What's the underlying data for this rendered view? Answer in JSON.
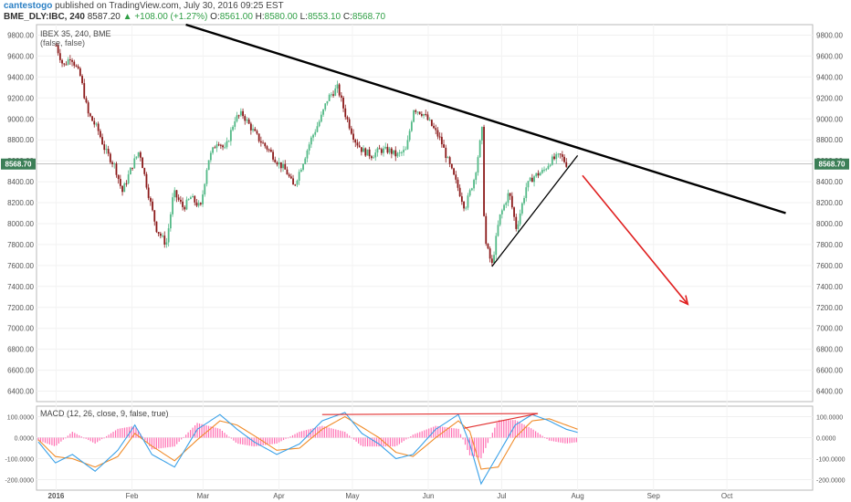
{
  "header": {
    "author": "cantestogo",
    "published_text": "published on TradingView.com, July 30, 2016 09:25 EST",
    "symbol": "BME_DLY:IBC, 240",
    "last": "8587.20",
    "change_arrow": "▲",
    "change": "+108.00 (+1.27%)",
    "o_label": "O:",
    "o_value": "8561.00",
    "h_label": "H:",
    "h_value": "8580.00",
    "l_label": "L:",
    "l_value": "8553.10",
    "c_label": "C:",
    "c_value": "8568.70"
  },
  "chart_data": [
    {
      "type": "candlestick",
      "legend": "IBEX 35, 240, BME",
      "legend_sub": "(false, false)",
      "ylim": [
        6300,
        9900
      ],
      "y_ticks": [
        "9800.00",
        "9600.00",
        "9400.00",
        "9200.00",
        "9000.00",
        "8800.00",
        "8600.00",
        "8400.00",
        "8200.00",
        "8000.00",
        "7800.00",
        "7600.00",
        "7400.00",
        "7200.00",
        "7000.00",
        "6800.00",
        "6600.00",
        "6400.00"
      ],
      "x_ticks": [
        "2016",
        "Feb",
        "Mar",
        "Apr",
        "May",
        "Jun",
        "Jul",
        "Aug",
        "Sep",
        "Oct"
      ],
      "last_price_label": "8568.70",
      "last_price": 8568.7,
      "close_path": [
        [
          "2016-01-01",
          9700
        ],
        [
          "2016-01-04",
          9500
        ],
        [
          "2016-01-07",
          9600
        ],
        [
          "2016-01-11",
          9400
        ],
        [
          "2016-01-14",
          9050
        ],
        [
          "2016-01-18",
          8900
        ],
        [
          "2016-01-21",
          8700
        ],
        [
          "2016-01-25",
          8550
        ],
        [
          "2016-01-28",
          8300
        ],
        [
          "2016-02-01",
          8550
        ],
        [
          "2016-02-04",
          8700
        ],
        [
          "2016-02-08",
          8250
        ],
        [
          "2016-02-11",
          7950
        ],
        [
          "2016-02-15",
          7800
        ],
        [
          "2016-02-18",
          8300
        ],
        [
          "2016-02-22",
          8150
        ],
        [
          "2016-02-25",
          8250
        ],
        [
          "2016-02-29",
          8150
        ],
        [
          "2016-03-03",
          8600
        ],
        [
          "2016-03-07",
          8800
        ],
        [
          "2016-03-10",
          8700
        ],
        [
          "2016-03-14",
          9000
        ],
        [
          "2016-03-17",
          9050
        ],
        [
          "2016-03-21",
          8900
        ],
        [
          "2016-03-24",
          8800
        ],
        [
          "2016-03-28",
          8700
        ],
        [
          "2016-03-31",
          8600
        ],
        [
          "2016-04-04",
          8500
        ],
        [
          "2016-04-07",
          8350
        ],
        [
          "2016-04-11",
          8600
        ],
        [
          "2016-04-14",
          8800
        ],
        [
          "2016-04-18",
          9000
        ],
        [
          "2016-04-21",
          9200
        ],
        [
          "2016-04-25",
          9300
        ],
        [
          "2016-04-28",
          9050
        ],
        [
          "2016-05-02",
          8800
        ],
        [
          "2016-05-05",
          8700
        ],
        [
          "2016-05-09",
          8650
        ],
        [
          "2016-05-12",
          8700
        ],
        [
          "2016-05-16",
          8700
        ],
        [
          "2016-05-19",
          8650
        ],
        [
          "2016-05-23",
          8700
        ],
        [
          "2016-05-26",
          9100
        ],
        [
          "2016-05-30",
          9050
        ],
        [
          "2016-06-02",
          8950
        ],
        [
          "2016-06-06",
          8800
        ],
        [
          "2016-06-09",
          8600
        ],
        [
          "2016-06-13",
          8350
        ],
        [
          "2016-06-16",
          8150
        ],
        [
          "2016-06-20",
          8450
        ],
        [
          "2016-06-23",
          8900
        ],
        [
          "2016-06-24",
          7850
        ],
        [
          "2016-06-27",
          7600
        ],
        [
          "2016-06-30",
          8050
        ],
        [
          "2016-07-04",
          8300
        ],
        [
          "2016-07-07",
          7950
        ],
        [
          "2016-07-11",
          8350
        ],
        [
          "2016-07-14",
          8450
        ],
        [
          "2016-07-18",
          8500
        ],
        [
          "2016-07-21",
          8600
        ],
        [
          "2016-07-25",
          8650
        ],
        [
          "2016-07-28",
          8550
        ],
        [
          "2016-07-29",
          8568.7
        ]
      ],
      "drawings": [
        {
          "name": "descending trendline",
          "from": [
            "2016-02-23",
            9900
          ],
          "to": [
            "2016-10-25",
            8100
          ]
        },
        {
          "name": "rising support line",
          "from": [
            "2016-06-27",
            7590
          ],
          "to": [
            "2016-08-01",
            8650
          ]
        },
        {
          "name": "projection arrow",
          "from": [
            "2016-08-03",
            8460
          ],
          "to": [
            "2016-09-15",
            7230
          ]
        }
      ]
    },
    {
      "type": "line",
      "legend": "MACD (12, 26, close, 9, false, true)",
      "ylim": [
        -250000,
        150000
      ],
      "y_ticks": [
        "100.0000",
        "0.0000",
        "-100.0000",
        "-200.0000"
      ],
      "series": [
        {
          "name": "MACD",
          "values": [
            [
              0,
              -20000
            ],
            [
              6,
              -120000
            ],
            [
              12,
              -80000
            ],
            [
              20,
              -160000
            ],
            [
              28,
              -60000
            ],
            [
              34,
              60000
            ],
            [
              40,
              -80000
            ],
            [
              48,
              -140000
            ],
            [
              56,
              40000
            ],
            [
              64,
              110000
            ],
            [
              70,
              40000
            ],
            [
              76,
              -20000
            ],
            [
              84,
              -80000
            ],
            [
              92,
              -30000
            ],
            [
              100,
              80000
            ],
            [
              108,
              120000
            ],
            [
              114,
              20000
            ],
            [
              120,
              -30000
            ],
            [
              126,
              -100000
            ],
            [
              132,
              -80000
            ],
            [
              140,
              40000
            ],
            [
              148,
              110000
            ],
            [
              152,
              -30000
            ],
            [
              156,
              -220000
            ],
            [
              162,
              -80000
            ],
            [
              168,
              60000
            ],
            [
              174,
              110000
            ],
            [
              180,
              80000
            ],
            [
              186,
              40000
            ],
            [
              190,
              25000
            ]
          ]
        },
        {
          "name": "Signal",
          "values": [
            [
              0,
              -10000
            ],
            [
              6,
              -90000
            ],
            [
              12,
              -100000
            ],
            [
              20,
              -140000
            ],
            [
              28,
              -90000
            ],
            [
              34,
              20000
            ],
            [
              40,
              -40000
            ],
            [
              48,
              -110000
            ],
            [
              56,
              -10000
            ],
            [
              64,
              80000
            ],
            [
              70,
              60000
            ],
            [
              76,
              10000
            ],
            [
              84,
              -60000
            ],
            [
              92,
              -50000
            ],
            [
              100,
              40000
            ],
            [
              108,
              100000
            ],
            [
              114,
              50000
            ],
            [
              120,
              0
            ],
            [
              126,
              -70000
            ],
            [
              132,
              -90000
            ],
            [
              140,
              0
            ],
            [
              148,
              80000
            ],
            [
              152,
              30000
            ],
            [
              156,
              -150000
            ],
            [
              162,
              -140000
            ],
            [
              168,
              0
            ],
            [
              174,
              80000
            ],
            [
              180,
              90000
            ],
            [
              186,
              60000
            ],
            [
              190,
              40000
            ]
          ]
        }
      ]
    }
  ],
  "colors": {
    "up_candle": "#53b987",
    "down_candle": "#8b1a1a",
    "macd_line": "#3aa1e8",
    "signal_line": "#f08c2a",
    "histogram": "#ff6fb3",
    "divergence_line": "#e23030",
    "trendline": "#000000",
    "arrow": "#e02020"
  }
}
